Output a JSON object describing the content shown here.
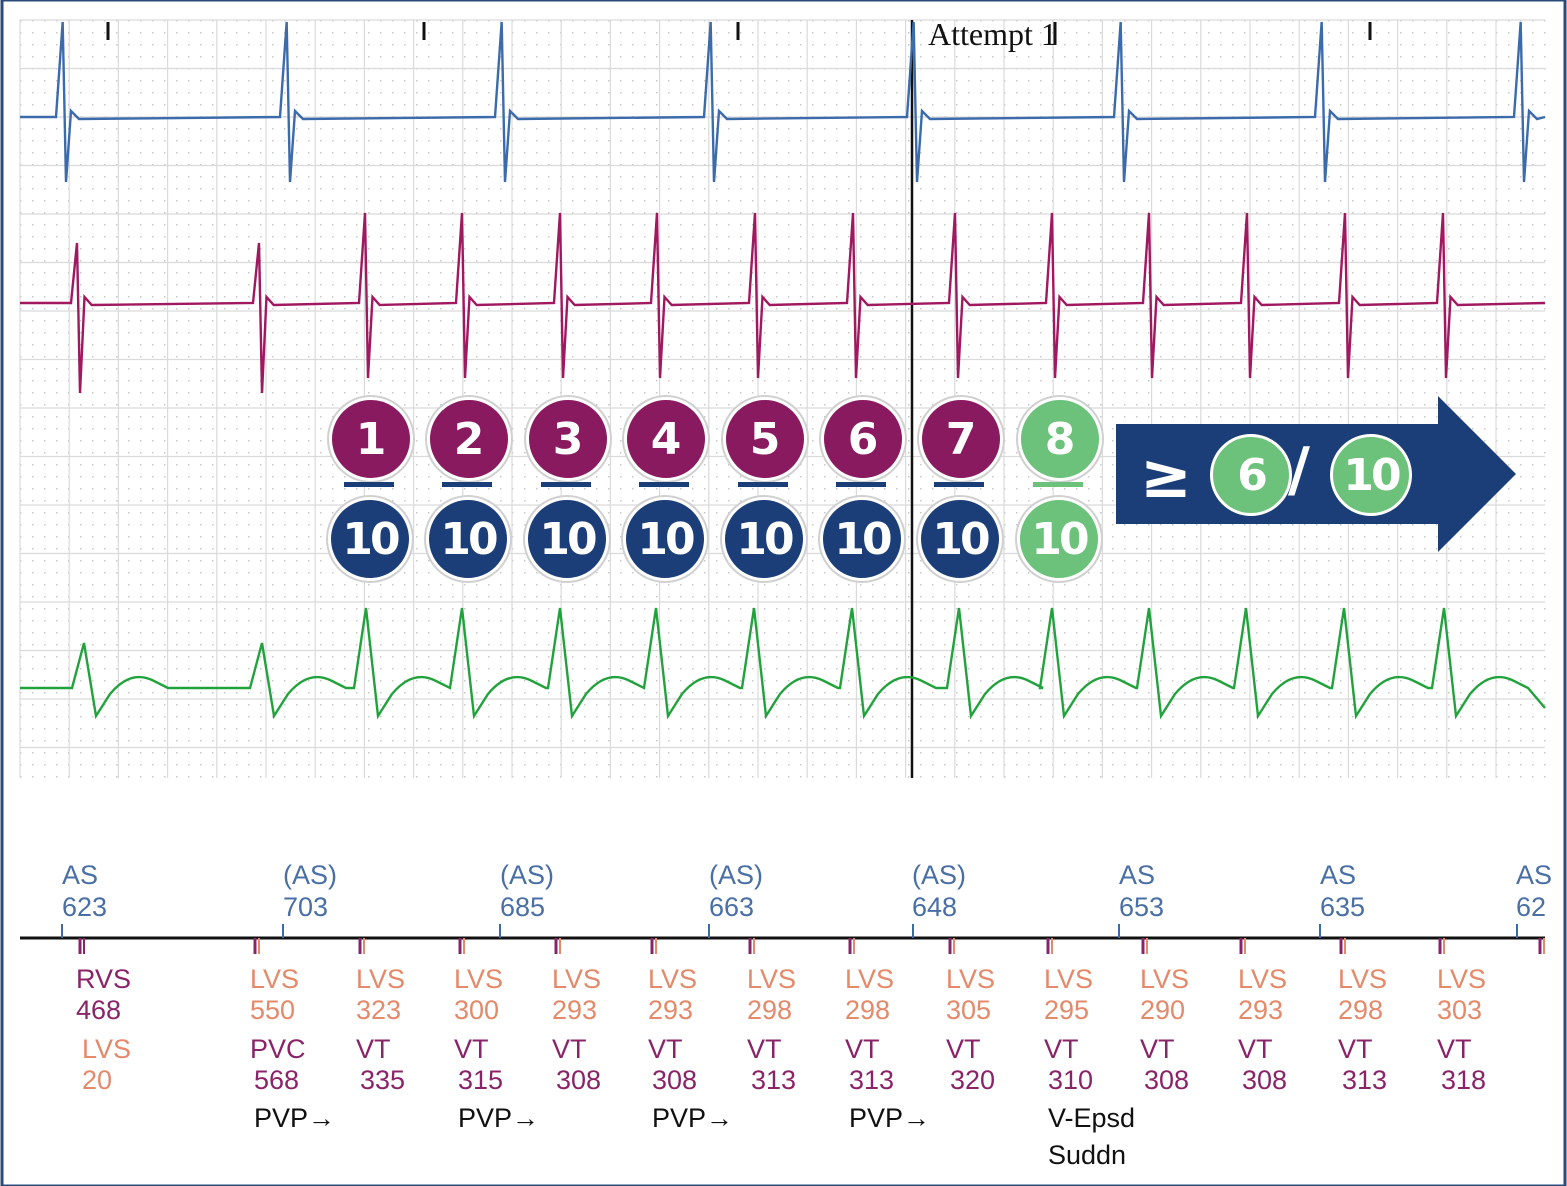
{
  "annotation": {
    "text": "Attempt 1"
  },
  "counter": {
    "numerators": [
      "1",
      "2",
      "3",
      "4",
      "5",
      "6",
      "7",
      "8"
    ],
    "denominators": [
      "10",
      "10",
      "10",
      "10",
      "10",
      "10",
      "10",
      "10"
    ],
    "highlight_index": 7,
    "colors": {
      "purple": "#8a1a5f",
      "navy": "#1c3e78",
      "green": "#6cc27b"
    }
  },
  "criterion": {
    "symbol": "≥",
    "numerator": "6",
    "slash": "/",
    "denominator": "10",
    "arrow_color": "#1c3e78",
    "circle_color": "#6cc27b"
  },
  "traces": {
    "atrial_color": "#3c6bab",
    "rv_color": "#a0185f",
    "shock_color": "#22a23c"
  },
  "atrial_markers": [
    {
      "label": "AS",
      "value": "623"
    },
    {
      "label": "(AS)",
      "value": "703"
    },
    {
      "label": "(AS)",
      "value": "685"
    },
    {
      "label": "(AS)",
      "value": "663"
    },
    {
      "label": "(AS)",
      "value": "648"
    },
    {
      "label": "AS",
      "value": "653"
    },
    {
      "label": "AS",
      "value": "635"
    },
    {
      "label": "AS",
      "value": "62"
    }
  ],
  "ventricular_markers": [
    {
      "l1": "RVS",
      "v1": "468",
      "l2": "LVS",
      "v2": "20",
      "p": ""
    },
    {
      "l1": "LVS",
      "v1": "550",
      "l2": "PVC",
      "v2": "568",
      "p": "PVP→"
    },
    {
      "l1": "LVS",
      "v1": "323",
      "l2": "VT",
      "v2": "335",
      "p": ""
    },
    {
      "l1": "LVS",
      "v1": "300",
      "l2": "VT",
      "v2": "315",
      "p": "PVP→"
    },
    {
      "l1": "LVS",
      "v1": "293",
      "l2": "VT",
      "v2": "308",
      "p": ""
    },
    {
      "l1": "LVS",
      "v1": "293",
      "l2": "VT",
      "v2": "308",
      "p": "PVP→"
    },
    {
      "l1": "LVS",
      "v1": "298",
      "l2": "VT",
      "v2": "313",
      "p": ""
    },
    {
      "l1": "LVS",
      "v1": "298",
      "l2": "VT",
      "v2": "313",
      "p": "PVP→"
    },
    {
      "l1": "LVS",
      "v1": "305",
      "l2": "VT",
      "v2": "320",
      "p": ""
    },
    {
      "l1": "LVS",
      "v1": "295",
      "l2": "VT",
      "v2": "310",
      "p": "V-Epsd",
      "p2": "Suddn"
    },
    {
      "l1": "LVS",
      "v1": "290",
      "l2": "VT",
      "v2": "308",
      "p": ""
    },
    {
      "l1": "LVS",
      "v1": "293",
      "l2": "VT",
      "v2": "308",
      "p": ""
    },
    {
      "l1": "LVS",
      "v1": "298",
      "l2": "VT",
      "v2": "313",
      "p": ""
    },
    {
      "l1": "LVS",
      "v1": "303",
      "l2": "VT",
      "v2": "318",
      "p": ""
    }
  ]
}
